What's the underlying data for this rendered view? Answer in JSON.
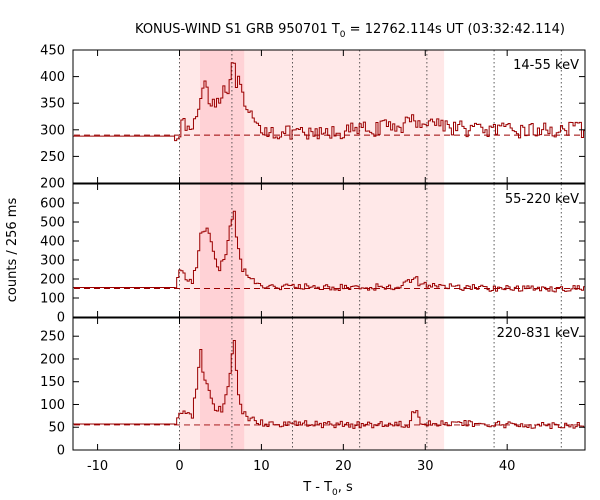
{
  "chart_data": {
    "type": "line",
    "title": {
      "prefix": "KONUS-WIND S1 GRB 950701 T",
      "sub": "0",
      "suffix": " = 12762.114s UT (03:32:42.114)"
    },
    "xlabel": {
      "prefix": "T - T",
      "sub": "0",
      "suffix": ", s"
    },
    "ylabel": "counts / 256 ms",
    "xlim": [
      -13,
      49.5
    ],
    "x_ticks": [
      -10,
      0,
      10,
      20,
      30,
      40
    ],
    "time_bin_s": 0.256,
    "shaded_intervals": [
      {
        "x0": 0.0,
        "x1": 32.3,
        "role": "light"
      },
      {
        "x0": 2.5,
        "x1": 7.9,
        "role": "dark"
      }
    ],
    "dotted_lines_x": [
      0.0,
      6.4,
      13.8,
      22.0,
      30.2,
      38.4,
      46.6
    ],
    "series": [
      {
        "name": "14-55 keV",
        "ylim": [
          200,
          450
        ],
        "y_ticks": [
          200,
          250,
          300,
          350,
          400,
          450
        ],
        "background": 290,
        "profile": [
          [
            -13,
            295
          ],
          [
            -7.5,
            295
          ],
          [
            -7.4,
            288
          ],
          [
            -0.6,
            288
          ],
          [
            0,
            300
          ],
          [
            0.8,
            310
          ],
          [
            1.5,
            295
          ],
          [
            2.2,
            330
          ],
          [
            2.6,
            370
          ],
          [
            3.2,
            390
          ],
          [
            3.8,
            360
          ],
          [
            4.6,
            350
          ],
          [
            5.2,
            375
          ],
          [
            5.8,
            385
          ],
          [
            6.4,
            405
          ],
          [
            6.9,
            400
          ],
          [
            7.6,
            360
          ],
          [
            8.2,
            330
          ],
          [
            9.5,
            305
          ],
          [
            12,
            295
          ],
          [
            16,
            290
          ],
          [
            22,
            300
          ],
          [
            26,
            305
          ],
          [
            29,
            318
          ],
          [
            31,
            315
          ],
          [
            34,
            303
          ],
          [
            40,
            298
          ],
          [
            46,
            300
          ],
          [
            49.5,
            300
          ]
        ],
        "noise": 14,
        "start_x": -0.6
      },
      {
        "name": "55-220 keV",
        "ylim": [
          0,
          700
        ],
        "y_ticks": [
          0,
          100,
          200,
          300,
          400,
          500,
          600
        ],
        "background": 150,
        "profile": [
          [
            -13,
            155
          ],
          [
            -6,
            155
          ],
          [
            -5.9,
            150
          ],
          [
            -0.6,
            150
          ],
          [
            0,
            230
          ],
          [
            0.8,
            210
          ],
          [
            1.5,
            180
          ],
          [
            2.2,
            300
          ],
          [
            2.6,
            470
          ],
          [
            3.3,
            480
          ],
          [
            4.0,
            350
          ],
          [
            4.6,
            250
          ],
          [
            5.2,
            280
          ],
          [
            5.7,
            350
          ],
          [
            6.2,
            460
          ],
          [
            6.6,
            560
          ],
          [
            7.0,
            420
          ],
          [
            7.5,
            280
          ],
          [
            8.2,
            220
          ],
          [
            9.5,
            170
          ],
          [
            12,
            160
          ],
          [
            20,
            155
          ],
          [
            27,
            160
          ],
          [
            28.6,
            215
          ],
          [
            29.4,
            175
          ],
          [
            32,
            160
          ],
          [
            40,
            150
          ],
          [
            49.5,
            150
          ]
        ],
        "noise": 18,
        "start_x": -0.6
      },
      {
        "name": "220-831 keV",
        "ylim": [
          0,
          290
        ],
        "y_ticks": [
          0,
          50,
          100,
          150,
          200,
          250
        ],
        "background": 55,
        "profile": [
          [
            -13,
            57
          ],
          [
            -6,
            57
          ],
          [
            -5.9,
            55
          ],
          [
            -0.6,
            55
          ],
          [
            0,
            85
          ],
          [
            0.8,
            80
          ],
          [
            1.5,
            70
          ],
          [
            2.2,
            150
          ],
          [
            2.6,
            210
          ],
          [
            3.0,
            160
          ],
          [
            3.8,
            110
          ],
          [
            4.6,
            85
          ],
          [
            5.2,
            90
          ],
          [
            5.8,
            130
          ],
          [
            6.3,
            175
          ],
          [
            6.6,
            255
          ],
          [
            7.0,
            150
          ],
          [
            7.6,
            90
          ],
          [
            8.5,
            70
          ],
          [
            10,
            60
          ],
          [
            20,
            55
          ],
          [
            28,
            58
          ],
          [
            28.8,
            95
          ],
          [
            29.5,
            62
          ],
          [
            32,
            58
          ],
          [
            40,
            55
          ],
          [
            49.5,
            55
          ]
        ],
        "noise": 8,
        "start_x": -0.6
      }
    ]
  }
}
